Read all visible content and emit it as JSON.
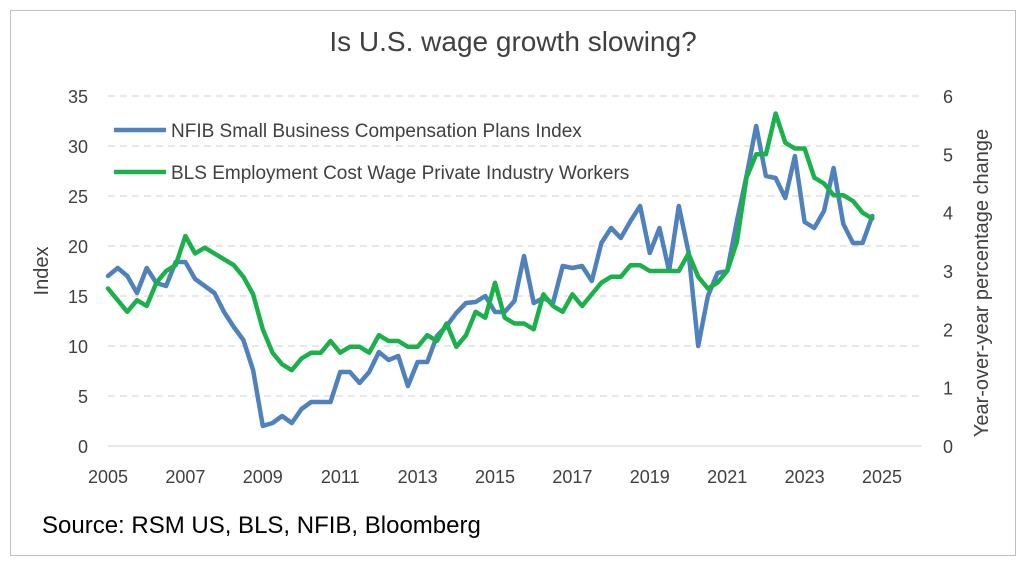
{
  "chart_data": {
    "type": "line",
    "title": "Is U.S. wage growth slowing?",
    "source": "Source: RSM US, BLS, NFIB, Bloomberg",
    "xlabel": "",
    "ylabel_left": "Index",
    "ylabel_right": "Year-over-year percentage change",
    "xlim": [
      2005,
      2025
    ],
    "ylim_left": [
      0,
      35
    ],
    "ylim_right": [
      0,
      6
    ],
    "x_ticks": [
      "2005",
      "2007",
      "2009",
      "2011",
      "2013",
      "2015",
      "2017",
      "2019",
      "2021",
      "2023",
      "2025"
    ],
    "y_ticks_left": [
      "0",
      "5",
      "10",
      "15",
      "20",
      "25",
      "30",
      "35"
    ],
    "y_ticks_right": [
      "0",
      "1",
      "2",
      "3",
      "4",
      "5",
      "6"
    ],
    "grid": "horizontal dashed",
    "legend_position": "top-left",
    "colors": {
      "nfib": "#4f81bd",
      "bls": "#1bb04a",
      "grid": "#d9d9d9",
      "text": "#404040"
    },
    "series": [
      {
        "name": "NFIB Small Business Compensation Plans Index",
        "axis": "left",
        "x": [
          2005.0,
          2005.25,
          2005.5,
          2005.75,
          2006.0,
          2006.25,
          2006.5,
          2006.75,
          2007.0,
          2007.25,
          2007.5,
          2007.75,
          2008.0,
          2008.25,
          2008.5,
          2008.75,
          2009.0,
          2009.25,
          2009.5,
          2009.75,
          2010.0,
          2010.25,
          2010.5,
          2010.75,
          2011.0,
          2011.25,
          2011.5,
          2011.75,
          2012.0,
          2012.25,
          2012.5,
          2012.75,
          2013.0,
          2013.25,
          2013.5,
          2013.75,
          2014.0,
          2014.25,
          2014.5,
          2014.75,
          2015.0,
          2015.25,
          2015.5,
          2015.75,
          2016.0,
          2016.25,
          2016.5,
          2016.75,
          2017.0,
          2017.25,
          2017.5,
          2017.75,
          2018.0,
          2018.25,
          2018.5,
          2018.75,
          2019.0,
          2019.25,
          2019.5,
          2019.75,
          2020.0,
          2020.25,
          2020.5,
          2020.75,
          2021.0,
          2021.25,
          2021.5,
          2021.75,
          2022.0,
          2022.25,
          2022.5,
          2022.75,
          2023.0,
          2023.25,
          2023.5,
          2023.75,
          2024.0,
          2024.25,
          2024.5,
          2024.75
        ],
        "values": [
          17,
          17.8,
          17,
          15.3,
          17.8,
          16.3,
          16,
          18.4,
          18.4,
          16.7,
          16,
          15.3,
          13.4,
          11.9,
          10.6,
          7.6,
          2,
          2.3,
          3,
          2.3,
          3.7,
          4.4,
          4.4,
          4.4,
          7.4,
          7.4,
          6.3,
          7.4,
          9.4,
          8.6,
          9,
          6,
          8.4,
          8.4,
          11,
          12,
          13.3,
          14.3,
          14.4,
          15,
          13.4,
          13.4,
          14.5,
          19,
          14.3,
          14.8,
          14.3,
          18,
          17.8,
          18,
          16.5,
          20.3,
          21.8,
          20.8,
          22.5,
          24,
          19.3,
          21.8,
          17.5,
          24,
          19.4,
          10,
          15,
          17.3,
          17.5,
          22.5,
          27,
          32,
          27,
          26.8,
          24.8,
          29,
          22.4,
          21.8,
          23.5,
          27.8,
          22.2,
          20.3,
          20.3,
          23
        ]
      },
      {
        "name": "BLS Employment Cost Wage Private Industry Workers",
        "axis": "right",
        "x": [
          2005.0,
          2005.25,
          2005.5,
          2005.75,
          2006.0,
          2006.25,
          2006.5,
          2006.75,
          2007.0,
          2007.25,
          2007.5,
          2007.75,
          2008.0,
          2008.25,
          2008.5,
          2008.75,
          2009.0,
          2009.25,
          2009.5,
          2009.75,
          2010.0,
          2010.25,
          2010.5,
          2010.75,
          2011.0,
          2011.25,
          2011.5,
          2011.75,
          2012.0,
          2012.25,
          2012.5,
          2012.75,
          2013.0,
          2013.25,
          2013.5,
          2013.75,
          2014.0,
          2014.25,
          2014.5,
          2014.75,
          2015.0,
          2015.25,
          2015.5,
          2015.75,
          2016.0,
          2016.25,
          2016.5,
          2016.75,
          2017.0,
          2017.25,
          2017.5,
          2017.75,
          2018.0,
          2018.25,
          2018.5,
          2018.75,
          2019.0,
          2019.25,
          2019.5,
          2019.75,
          2020.0,
          2020.25,
          2020.5,
          2020.75,
          2021.0,
          2021.25,
          2021.5,
          2021.75,
          2022.0,
          2022.25,
          2022.5,
          2022.75,
          2023.0,
          2023.25,
          2023.5,
          2023.75,
          2024.0,
          2024.25,
          2024.5,
          2024.75
        ],
        "values": [
          2.7,
          2.5,
          2.3,
          2.5,
          2.4,
          2.8,
          3,
          3.1,
          3.6,
          3.3,
          3.4,
          3.3,
          3.2,
          3.1,
          2.9,
          2.6,
          2,
          1.6,
          1.4,
          1.3,
          1.5,
          1.6,
          1.6,
          1.8,
          1.6,
          1.7,
          1.7,
          1.6,
          1.9,
          1.8,
          1.8,
          1.7,
          1.7,
          1.9,
          1.8,
          2.1,
          1.7,
          1.9,
          2.3,
          2.2,
          2.8,
          2.2,
          2.1,
          2.1,
          2,
          2.6,
          2.4,
          2.3,
          2.6,
          2.4,
          2.6,
          2.8,
          2.9,
          2.9,
          3.1,
          3.1,
          3,
          3,
          3,
          3,
          3.3,
          2.9,
          2.7,
          2.8,
          3,
          3.5,
          4.6,
          5,
          5,
          5.7,
          5.2,
          5.1,
          5.1,
          4.6,
          4.5,
          4.3,
          4.3,
          4.2,
          4,
          3.9
        ]
      }
    ]
  }
}
